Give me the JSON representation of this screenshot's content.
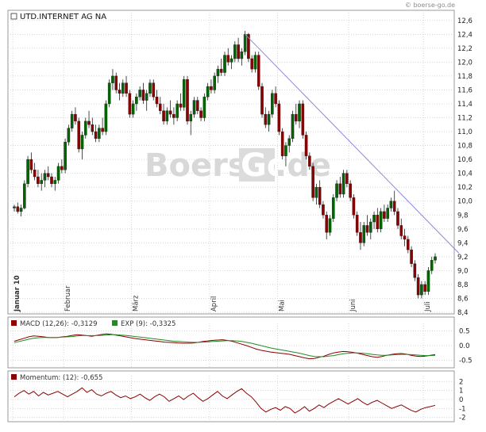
{
  "credit": "© boerse-go.de",
  "watermark": {
    "left": "Boerse",
    "boxed": "Go",
    "right": ".de"
  },
  "colors": {
    "bull": "#006600",
    "bear": "#8b0000",
    "trendline": "#8888dd",
    "macd": "#8b0000",
    "signal": "#228b22",
    "momentum": "#8b0000",
    "grid": "#cccccc"
  },
  "chart_data": [
    {
      "type": "candlestick",
      "title": "UTD.INTERNET AG NA",
      "ylim": [
        8.4,
        12.7
      ],
      "y_ticks": [
        "12,6",
        "12,4",
        "12,2",
        "12,0",
        "11,8",
        "11,6",
        "11,4",
        "11,2",
        "11,0",
        "10,8",
        "10,6",
        "10,4",
        "10,2",
        "10,0",
        "9,8",
        "9,6",
        "9,4",
        "9,2",
        "9,0",
        "8,8",
        "8,6",
        "8,4"
      ],
      "month_labels": [
        "Januar 10",
        "Februar",
        "März",
        "April",
        "Mai",
        "Juni",
        "Juli"
      ],
      "month_starts": [
        0,
        15,
        35,
        58,
        78,
        99,
        121
      ],
      "trendline": {
        "from": {
          "index": 68,
          "value": 12.4
        },
        "to": {
          "index": 131,
          "value": 9.25
        }
      },
      "ohlc": [
        [
          9.9,
          9.95,
          9.85,
          9.92
        ],
        [
          9.92,
          9.98,
          9.82,
          9.85
        ],
        [
          9.85,
          9.95,
          9.78,
          9.9
        ],
        [
          9.9,
          10.3,
          9.88,
          10.25
        ],
        [
          10.25,
          10.65,
          10.2,
          10.6
        ],
        [
          10.6,
          10.7,
          10.4,
          10.45
        ],
        [
          10.45,
          10.55,
          10.3,
          10.35
        ],
        [
          10.35,
          10.45,
          10.2,
          10.25
        ],
        [
          10.25,
          10.4,
          10.15,
          10.3
        ],
        [
          10.3,
          10.45,
          10.2,
          10.4
        ],
        [
          10.4,
          10.5,
          10.3,
          10.35
        ],
        [
          10.35,
          10.4,
          10.2,
          10.25
        ],
        [
          10.25,
          10.35,
          10.15,
          10.3
        ],
        [
          10.3,
          10.55,
          10.25,
          10.5
        ],
        [
          10.5,
          10.6,
          10.4,
          10.45
        ],
        [
          10.45,
          10.9,
          10.4,
          10.85
        ],
        [
          10.85,
          11.1,
          10.8,
          11.05
        ],
        [
          11.05,
          11.3,
          11.0,
          11.25
        ],
        [
          11.25,
          11.35,
          11.1,
          11.15
        ],
        [
          11.15,
          11.2,
          10.7,
          10.75
        ],
        [
          10.75,
          11.0,
          10.6,
          10.95
        ],
        [
          10.95,
          11.2,
          10.9,
          11.15
        ],
        [
          11.15,
          11.3,
          11.05,
          11.1
        ],
        [
          11.1,
          11.2,
          10.95,
          11.0
        ],
        [
          11.0,
          11.1,
          10.85,
          10.9
        ],
        [
          10.9,
          11.1,
          10.85,
          11.05
        ],
        [
          11.05,
          11.2,
          10.95,
          11.0
        ],
        [
          11.0,
          11.45,
          10.95,
          11.4
        ],
        [
          11.4,
          11.75,
          11.35,
          11.7
        ],
        [
          11.7,
          11.9,
          11.6,
          11.8
        ],
        [
          11.8,
          11.85,
          11.55,
          11.6
        ],
        [
          11.6,
          11.7,
          11.45,
          11.55
        ],
        [
          11.55,
          11.75,
          11.5,
          11.7
        ],
        [
          11.7,
          11.8,
          11.5,
          11.55
        ],
        [
          11.55,
          11.6,
          11.2,
          11.25
        ],
        [
          11.25,
          11.45,
          11.2,
          11.4
        ],
        [
          11.4,
          11.55,
          11.3,
          11.5
        ],
        [
          11.5,
          11.65,
          11.45,
          11.6
        ],
        [
          11.6,
          11.7,
          11.4,
          11.45
        ],
        [
          11.45,
          11.6,
          11.3,
          11.55
        ],
        [
          11.55,
          11.75,
          11.5,
          11.7
        ],
        [
          11.7,
          11.75,
          11.45,
          11.5
        ],
        [
          11.5,
          11.6,
          11.35,
          11.4
        ],
        [
          11.4,
          11.5,
          11.25,
          11.3
        ],
        [
          11.3,
          11.4,
          11.1,
          11.15
        ],
        [
          11.15,
          11.35,
          11.1,
          11.3
        ],
        [
          11.3,
          11.45,
          11.2,
          11.25
        ],
        [
          11.25,
          11.35,
          11.1,
          11.2
        ],
        [
          11.2,
          11.45,
          11.15,
          11.4
        ],
        [
          11.4,
          11.55,
          11.3,
          11.35
        ],
        [
          11.35,
          11.8,
          11.3,
          11.75
        ],
        [
          11.75,
          11.8,
          11.1,
          11.15
        ],
        [
          11.15,
          11.3,
          10.95,
          11.25
        ],
        [
          11.25,
          11.5,
          11.2,
          11.45
        ],
        [
          11.45,
          11.5,
          11.25,
          11.3
        ],
        [
          11.3,
          11.35,
          11.15,
          11.2
        ],
        [
          11.2,
          11.55,
          11.15,
          11.5
        ],
        [
          11.5,
          11.7,
          11.45,
          11.65
        ],
        [
          11.65,
          11.75,
          11.55,
          11.6
        ],
        [
          11.6,
          11.85,
          11.55,
          11.8
        ],
        [
          11.8,
          11.95,
          11.7,
          11.9
        ],
        [
          11.9,
          12.05,
          11.8,
          11.85
        ],
        [
          11.85,
          12.15,
          11.8,
          12.1
        ],
        [
          12.1,
          12.2,
          11.95,
          12.0
        ],
        [
          12.0,
          12.1,
          11.9,
          12.05
        ],
        [
          12.05,
          12.3,
          12.0,
          12.25
        ],
        [
          12.25,
          12.35,
          12.0,
          12.05
        ],
        [
          12.05,
          12.2,
          11.95,
          12.15
        ],
        [
          12.15,
          12.45,
          12.1,
          12.4
        ],
        [
          12.4,
          12.42,
          12.0,
          12.05
        ],
        [
          12.05,
          12.1,
          11.85,
          11.9
        ],
        [
          11.9,
          12.15,
          11.85,
          12.1
        ],
        [
          12.1,
          12.15,
          11.6,
          11.65
        ],
        [
          11.65,
          11.7,
          11.2,
          11.25
        ],
        [
          11.25,
          11.35,
          11.05,
          11.1
        ],
        [
          11.1,
          11.3,
          11.0,
          11.25
        ],
        [
          11.25,
          11.6,
          11.2,
          11.55
        ],
        [
          11.55,
          11.65,
          11.35,
          11.4
        ],
        [
          11.4,
          11.45,
          10.95,
          11.0
        ],
        [
          11.0,
          11.05,
          10.6,
          10.65
        ],
        [
          10.65,
          10.85,
          10.5,
          10.8
        ],
        [
          10.8,
          10.95,
          10.7,
          10.9
        ],
        [
          10.9,
          11.3,
          10.85,
          11.25
        ],
        [
          11.25,
          11.4,
          11.1,
          11.15
        ],
        [
          11.15,
          11.45,
          11.05,
          11.4
        ],
        [
          11.4,
          11.45,
          10.9,
          10.95
        ],
        [
          10.95,
          11.0,
          10.6,
          10.65
        ],
        [
          10.65,
          10.7,
          10.45,
          10.5
        ],
        [
          10.5,
          10.55,
          10.0,
          10.05
        ],
        [
          10.05,
          10.25,
          9.95,
          10.2
        ],
        [
          10.2,
          10.3,
          9.9,
          9.95
        ],
        [
          9.95,
          10.0,
          9.75,
          9.8
        ],
        [
          9.8,
          9.85,
          9.45,
          9.55
        ],
        [
          9.55,
          9.8,
          9.5,
          9.75
        ],
        [
          9.75,
          10.1,
          9.7,
          10.05
        ],
        [
          10.05,
          10.3,
          10.0,
          10.25
        ],
        [
          10.25,
          10.35,
          10.05,
          10.1
        ],
        [
          10.1,
          10.45,
          10.05,
          10.4
        ],
        [
          10.4,
          10.45,
          10.2,
          10.25
        ],
        [
          10.25,
          10.3,
          10.0,
          10.05
        ],
        [
          10.05,
          10.1,
          9.75,
          9.8
        ],
        [
          9.8,
          9.85,
          9.5,
          9.55
        ],
        [
          9.55,
          9.7,
          9.3,
          9.4
        ],
        [
          9.4,
          9.7,
          9.35,
          9.65
        ],
        [
          9.65,
          9.8,
          9.5,
          9.55
        ],
        [
          9.55,
          9.75,
          9.45,
          9.7
        ],
        [
          9.7,
          9.85,
          9.6,
          9.8
        ],
        [
          9.8,
          9.9,
          9.55,
          9.6
        ],
        [
          9.6,
          9.9,
          9.55,
          9.85
        ],
        [
          9.85,
          9.95,
          9.7,
          9.75
        ],
        [
          9.75,
          9.95,
          9.7,
          9.9
        ],
        [
          9.9,
          10.05,
          9.85,
          10.0
        ],
        [
          10.0,
          10.15,
          9.8,
          9.85
        ],
        [
          9.85,
          9.9,
          9.6,
          9.65
        ],
        [
          9.65,
          9.75,
          9.45,
          9.5
        ],
        [
          9.5,
          9.6,
          9.35,
          9.45
        ],
        [
          9.45,
          9.5,
          9.25,
          9.3
        ],
        [
          9.3,
          9.35,
          9.05,
          9.1
        ],
        [
          9.1,
          9.15,
          8.85,
          8.9
        ],
        [
          8.9,
          8.95,
          8.6,
          8.65
        ],
        [
          8.65,
          8.85,
          8.6,
          8.8
        ],
        [
          8.8,
          8.85,
          8.65,
          8.7
        ],
        [
          8.7,
          9.05,
          8.65,
          9.0
        ],
        [
          9.0,
          9.2,
          8.95,
          9.15
        ],
        [
          9.15,
          9.25,
          9.1,
          9.2
        ]
      ]
    },
    {
      "type": "line",
      "title": "MACD",
      "legend": [
        {
          "label": "MACD (12,26): -0,3129"
        },
        {
          "label": "EXP (9): -0,3325"
        }
      ],
      "ylim": [
        -0.65,
        0.65
      ],
      "y_ticks": [
        "0.5",
        "0.0",
        "-0.5"
      ],
      "series": [
        {
          "key": "macd",
          "values": [
            0.15,
            0.2,
            0.25,
            0.3,
            0.33,
            0.32,
            0.3,
            0.28,
            0.27,
            0.28,
            0.3,
            0.32,
            0.35,
            0.37,
            0.36,
            0.34,
            0.32,
            0.35,
            0.38,
            0.4,
            0.39,
            0.36,
            0.33,
            0.3,
            0.27,
            0.24,
            0.22,
            0.2,
            0.18,
            0.16,
            0.14,
            0.12,
            0.11,
            0.1,
            0.09,
            0.08,
            0.08,
            0.09,
            0.11,
            0.14,
            0.16,
            0.18,
            0.19,
            0.2,
            0.18,
            0.15,
            0.1,
            0.05,
            0.0,
            -0.06,
            -0.12,
            -0.16,
            -0.19,
            -0.22,
            -0.24,
            -0.26,
            -0.28,
            -0.3,
            -0.34,
            -0.38,
            -0.42,
            -0.45,
            -0.44,
            -0.4,
            -0.36,
            -0.3,
            -0.25,
            -0.22,
            -0.2,
            -0.21,
            -0.23,
            -0.26,
            -0.3,
            -0.34,
            -0.38,
            -0.4,
            -0.37,
            -0.33,
            -0.3,
            -0.28,
            -0.27,
            -0.29,
            -0.33,
            -0.36,
            -0.37,
            -0.36,
            -0.33,
            -0.31
          ]
        },
        {
          "key": "signal",
          "values": [
            0.1,
            0.14,
            0.18,
            0.22,
            0.25,
            0.27,
            0.28,
            0.28,
            0.28,
            0.28,
            0.29,
            0.3,
            0.31,
            0.33,
            0.34,
            0.34,
            0.34,
            0.34,
            0.35,
            0.36,
            0.37,
            0.37,
            0.36,
            0.35,
            0.33,
            0.31,
            0.29,
            0.27,
            0.25,
            0.23,
            0.21,
            0.19,
            0.17,
            0.15,
            0.14,
            0.13,
            0.12,
            0.11,
            0.11,
            0.12,
            0.13,
            0.14,
            0.15,
            0.16,
            0.17,
            0.17,
            0.16,
            0.14,
            0.11,
            0.08,
            0.04,
            0.0,
            -0.04,
            -0.08,
            -0.11,
            -0.14,
            -0.17,
            -0.2,
            -0.23,
            -0.26,
            -0.3,
            -0.34,
            -0.37,
            -0.38,
            -0.38,
            -0.36,
            -0.34,
            -0.31,
            -0.28,
            -0.26,
            -0.25,
            -0.25,
            -0.26,
            -0.28,
            -0.3,
            -0.32,
            -0.33,
            -0.33,
            -0.32,
            -0.31,
            -0.3,
            -0.3,
            -0.31,
            -0.32,
            -0.33,
            -0.34,
            -0.34,
            -0.33
          ]
        }
      ]
    },
    {
      "type": "line",
      "title": "Momentum",
      "legend": [
        {
          "label": "Momentum: (12): -0,655"
        }
      ],
      "ylim": [
        -2.3,
        2.3
      ],
      "y_ticks": [
        "2",
        "1",
        "0",
        "-1",
        "-2"
      ],
      "series": [
        {
          "key": "momentum",
          "values": [
            0.3,
            0.7,
            1.0,
            0.6,
            0.9,
            0.4,
            0.8,
            0.5,
            0.7,
            0.9,
            0.6,
            0.3,
            0.6,
            0.9,
            1.3,
            0.8,
            1.1,
            0.6,
            0.4,
            0.7,
            0.9,
            0.5,
            0.2,
            0.4,
            0.1,
            0.3,
            0.6,
            0.2,
            -0.1,
            0.3,
            0.6,
            0.3,
            -0.2,
            0.1,
            0.4,
            0.0,
            0.4,
            0.7,
            0.2,
            -0.2,
            0.1,
            0.5,
            0.9,
            0.4,
            0.1,
            0.5,
            0.9,
            1.2,
            0.7,
            0.3,
            -0.3,
            -1.0,
            -1.4,
            -1.1,
            -0.9,
            -1.2,
            -0.8,
            -1.0,
            -1.5,
            -1.2,
            -0.8,
            -1.3,
            -1.0,
            -0.6,
            -0.9,
            -0.5,
            -0.2,
            0.1,
            -0.2,
            -0.5,
            -0.2,
            0.1,
            -0.3,
            -0.6,
            -0.3,
            -0.1,
            -0.4,
            -0.7,
            -1.0,
            -0.8,
            -0.6,
            -0.9,
            -1.2,
            -1.4,
            -1.1,
            -0.9,
            -0.8,
            -0.65
          ]
        }
      ]
    }
  ]
}
